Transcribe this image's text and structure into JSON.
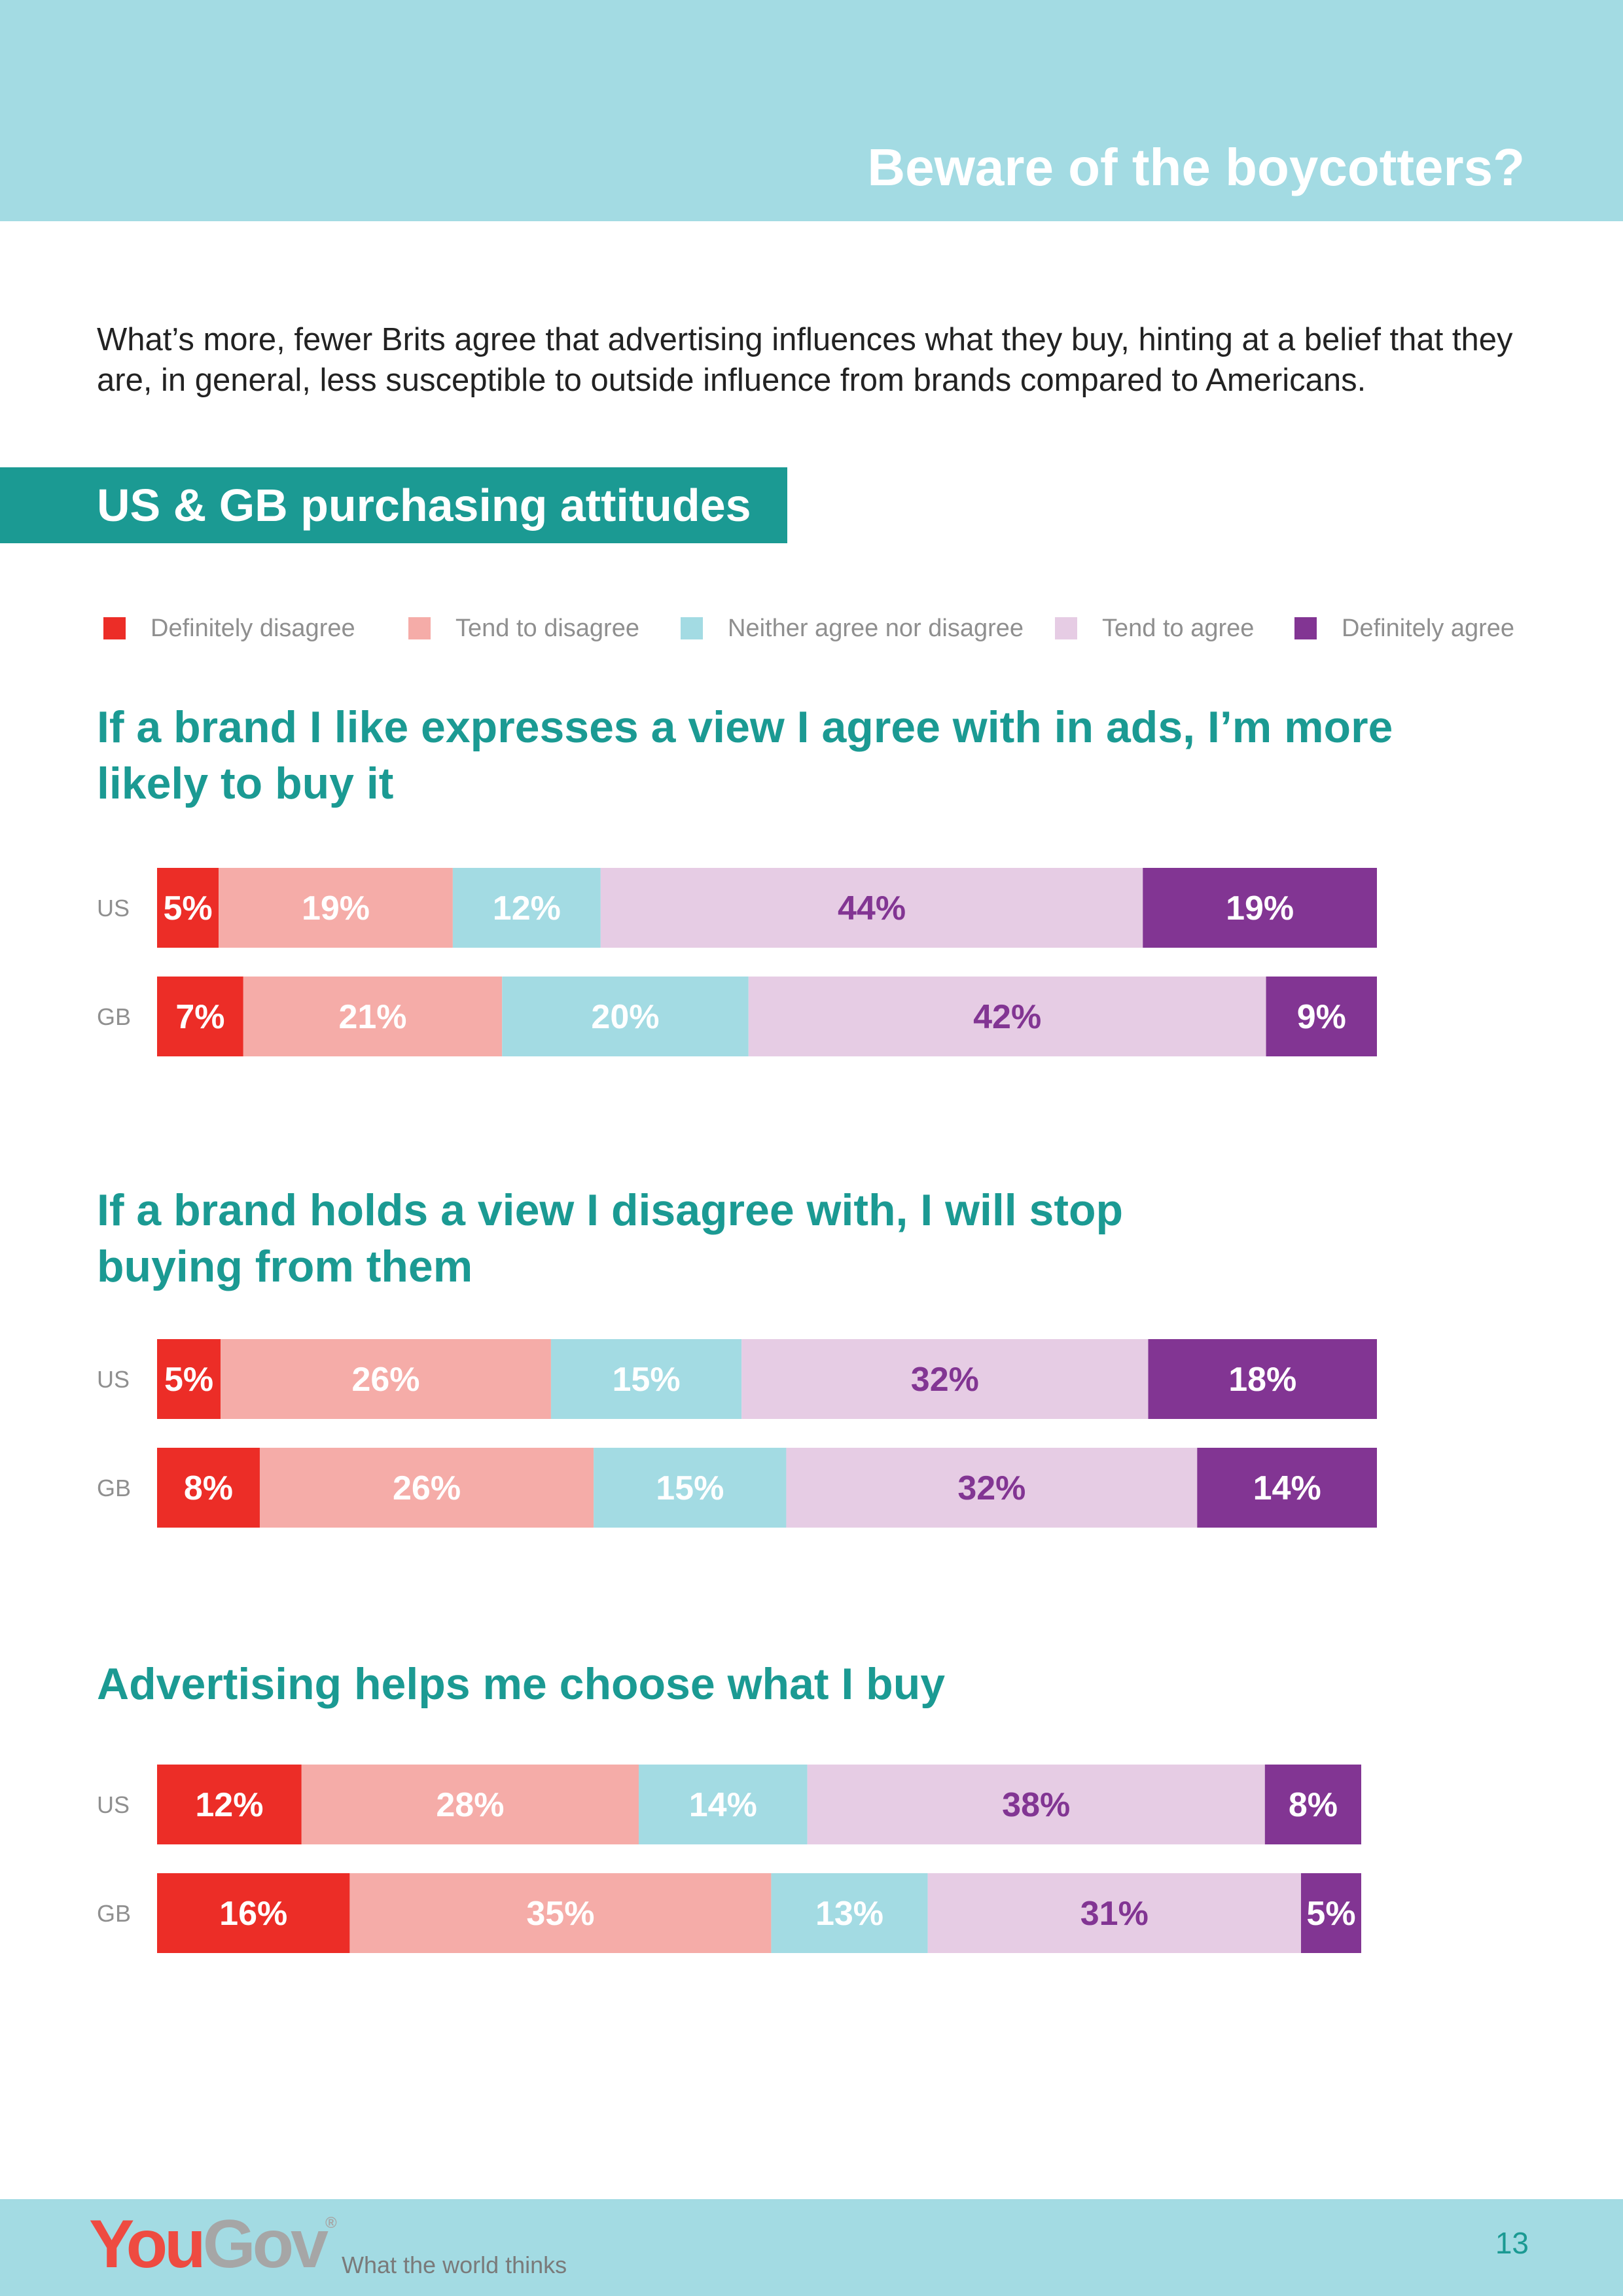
{
  "page": {
    "banner_title": "Beware of the boycotters?",
    "intro": "What’s more, fewer Brits agree that advertising influences what they buy, hinting at a belief that they are, in general, less susceptible to outside influence from brands compared to Americans.",
    "section_title": "US & GB purchasing attitudes",
    "page_number": "13"
  },
  "legend": [
    {
      "label": "Definitely disagree",
      "color": "#ec2d27"
    },
    {
      "label": "Tend to disagree",
      "color": "#f5aca8"
    },
    {
      "label": "Neither agree nor disagree",
      "color": "#a3dbe3"
    },
    {
      "label": "Tend to agree",
      "color": "#e6ccE4"
    },
    {
      "label": "Definitely agree",
      "color": "#823593"
    }
  ],
  "footer": {
    "logo_you": "You",
    "logo_gov": "Gov",
    "logo_mark": "®",
    "tagline": "What the world thinks"
  },
  "chart_data": [
    {
      "type": "bar",
      "orientation": "horizontal-stacked-100",
      "title": "If a brand I like expresses a view I agree with in ads, I’m more likely to buy it",
      "categories": [
        "US",
        "GB"
      ],
      "series": [
        {
          "name": "Definitely disagree",
          "values": [
            5,
            7
          ],
          "labels": [
            "5%",
            "7%"
          ]
        },
        {
          "name": "Tend to disagree",
          "values": [
            19,
            21
          ],
          "labels": [
            "19%",
            "21%"
          ]
        },
        {
          "name": "Neither agree nor disagree",
          "values": [
            12,
            20
          ],
          "labels": [
            "12%",
            "20%"
          ]
        },
        {
          "name": "Tend to agree",
          "values": [
            44,
            42
          ],
          "labels": [
            "44%",
            "42%"
          ]
        },
        {
          "name": "Definitely agree",
          "values": [
            19,
            9
          ],
          "labels": [
            "19%",
            "9%"
          ]
        }
      ]
    },
    {
      "type": "bar",
      "orientation": "horizontal-stacked-100",
      "title": "If a brand holds a view I disagree with, I will stop buying from them",
      "categories": [
        "US",
        "GB"
      ],
      "series": [
        {
          "name": "Definitely disagree",
          "values": [
            5,
            8
          ],
          "labels": [
            "5%",
            "8%"
          ]
        },
        {
          "name": "Tend to disagree",
          "values": [
            26,
            26
          ],
          "labels": [
            "26%",
            "26%"
          ]
        },
        {
          "name": "Neither agree nor disagree",
          "values": [
            15,
            15
          ],
          "labels": [
            "15%",
            "15%"
          ]
        },
        {
          "name": "Tend to agree",
          "values": [
            32,
            32
          ],
          "labels": [
            "32%",
            "32%"
          ]
        },
        {
          "name": "Definitely agree",
          "values": [
            18,
            14
          ],
          "labels": [
            "18%",
            "14%"
          ]
        }
      ]
    },
    {
      "type": "bar",
      "orientation": "horizontal-stacked-100",
      "title": "Advertising helps me choose what I buy",
      "categories": [
        "US",
        "GB"
      ],
      "series": [
        {
          "name": "Definitely disagree",
          "values": [
            12,
            16
          ],
          "labels": [
            "12%",
            "16%"
          ]
        },
        {
          "name": "Tend to disagree",
          "values": [
            28,
            35
          ],
          "labels": [
            "28%",
            "35%"
          ]
        },
        {
          "name": "Neither agree nor disagree",
          "values": [
            14,
            13
          ],
          "labels": [
            "14%",
            "13%"
          ]
        },
        {
          "name": "Tend to agree",
          "values": [
            38,
            31
          ],
          "labels": [
            "38%",
            "31%"
          ]
        },
        {
          "name": "Definitely agree",
          "values": [
            8,
            5
          ],
          "labels": [
            "8%",
            "5%"
          ]
        }
      ]
    }
  ]
}
